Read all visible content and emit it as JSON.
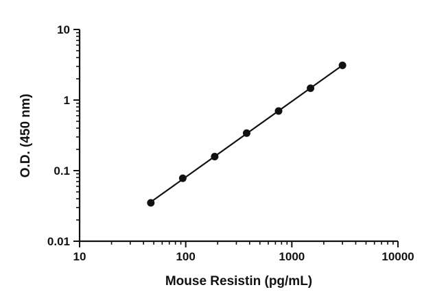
{
  "chart_data": {
    "type": "scatter",
    "title": "",
    "xlabel": "Mouse Resistin (pg/mL)",
    "ylabel": "O.D. (450 nm)",
    "x_scale": "log",
    "y_scale": "log",
    "xlim": [
      10,
      10000
    ],
    "ylim": [
      0.01,
      10
    ],
    "x_ticks": [
      "10",
      "100",
      "1000",
      "10000"
    ],
    "y_ticks": [
      "0.01",
      "0.1",
      "1",
      "10"
    ],
    "grid": false,
    "legend": "none",
    "series": [
      {
        "x": [
          46.9,
          93.8,
          187.5,
          375,
          750,
          1500,
          3000
        ],
        "y": [
          0.035,
          0.078,
          0.158,
          0.34,
          0.7,
          1.47,
          3.1
        ],
        "marker": "circle",
        "line": "fitted",
        "color": "#111111"
      }
    ]
  }
}
